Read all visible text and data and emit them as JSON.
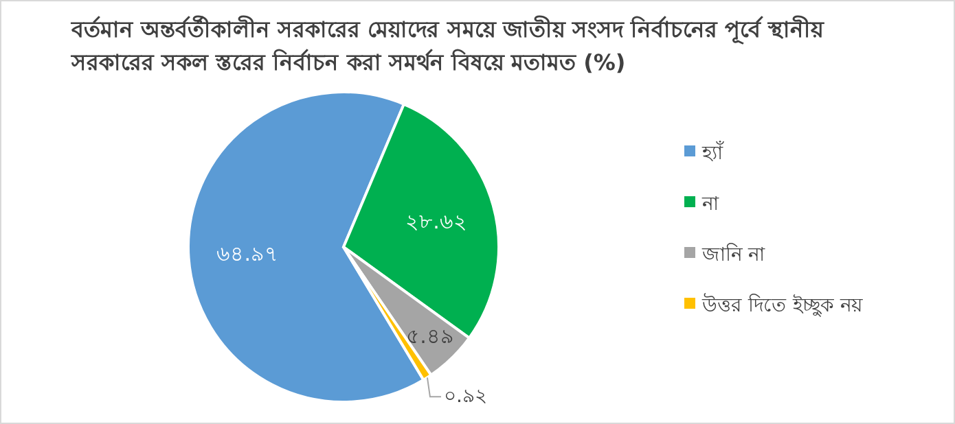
{
  "chart_data": {
    "type": "pie",
    "title": "বর্তমান অন্তর্বর্তীকালীন সরকারের মেয়াদের সময়ে জাতীয় সংসদ নির্বাচনের পূর্বে স্থানীয় সরকারের সকল স্তরের নির্বাচন করা সমর্থন বিষয়ে মতামত (%)",
    "categories": [
      "হ্যাঁ",
      "না",
      "জানি না",
      "উত্তর দিতে ইচ্ছুক নয়"
    ],
    "values": [
      64.97,
      28.62,
      5.49,
      0.92
    ],
    "colors": [
      "#5b9bd5",
      "#00b050",
      "#a5a5a5",
      "#ffc000"
    ],
    "value_labels": [
      "৬৪.৯৭",
      "২৮.৬২",
      "৫.৪৯",
      "০.৯২"
    ],
    "legend": "right"
  }
}
